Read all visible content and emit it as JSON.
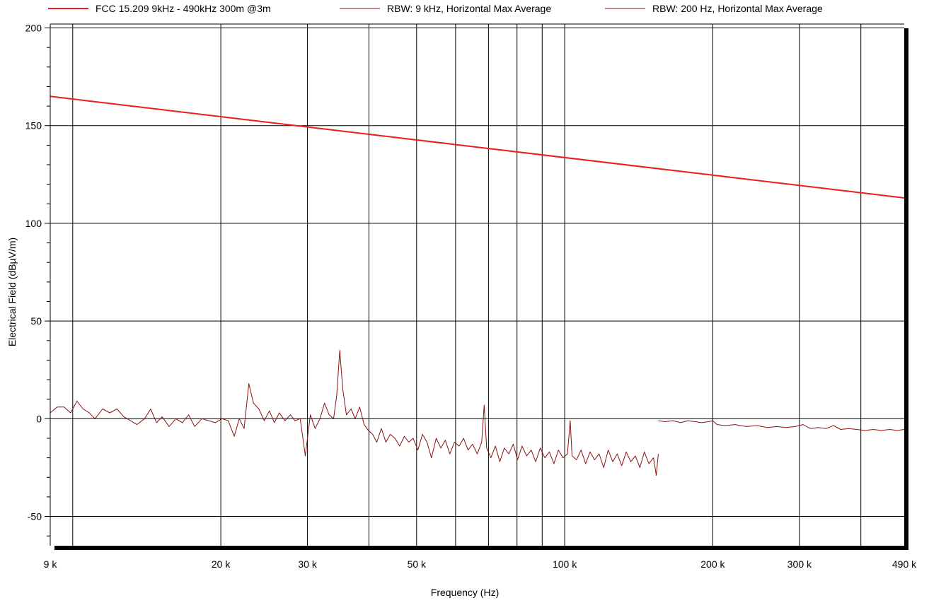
{
  "chart_data": {
    "type": "line",
    "title": "",
    "xlabel": "Frequency (Hz)",
    "ylabel": "Electrical Field (dBµV/m)",
    "x_scale": "log",
    "xlim": [
      9000,
      490000
    ],
    "ylim": [
      -65,
      202
    ],
    "grid": true,
    "legend_position": "top",
    "x_ticks": [
      {
        "value": 9000,
        "label": "9 k"
      },
      {
        "value": 20000,
        "label": "20 k"
      },
      {
        "value": 30000,
        "label": "30 k"
      },
      {
        "value": 50000,
        "label": "50 k"
      },
      {
        "value": 100000,
        "label": "100 k"
      },
      {
        "value": 200000,
        "label": "200 k"
      },
      {
        "value": 300000,
        "label": "300 k"
      },
      {
        "value": 490000,
        "label": "490 k"
      }
    ],
    "x_grid": [
      10000,
      20000,
      30000,
      40000,
      50000,
      60000,
      70000,
      80000,
      90000,
      100000,
      200000,
      300000,
      400000
    ],
    "y_ticks": [
      {
        "value": -50,
        "label": "-50"
      },
      {
        "value": 0,
        "label": "0"
      },
      {
        "value": 50,
        "label": "50"
      },
      {
        "value": 100,
        "label": "100"
      },
      {
        "value": 150,
        "label": "150"
      },
      {
        "value": 200,
        "label": "200"
      }
    ],
    "series": [
      {
        "name": "FCC 15.209 9kHz - 490kHz 300m @3m",
        "color": "#ee1c1c",
        "points": [
          [
            9000,
            165.0
          ],
          [
            490000,
            113.0
          ]
        ]
      },
      {
        "name": "RBW: 9 kHz, Horizontal Max Average",
        "color": "#8b1010",
        "points": [
          [
            9000,
            3
          ],
          [
            9300,
            6
          ],
          [
            9600,
            6
          ],
          [
            9900,
            3
          ],
          [
            10200,
            9
          ],
          [
            10500,
            5
          ],
          [
            10800,
            3
          ],
          [
            11100,
            0
          ],
          [
            11500,
            5
          ],
          [
            11900,
            3
          ],
          [
            12300,
            5
          ],
          [
            12700,
            1
          ],
          [
            13100,
            -1
          ],
          [
            13500,
            -3
          ],
          [
            14000,
            0
          ],
          [
            14400,
            5
          ],
          [
            14800,
            -2
          ],
          [
            15200,
            1
          ],
          [
            15700,
            -4
          ],
          [
            16200,
            0
          ],
          [
            16700,
            -2
          ],
          [
            17200,
            2
          ],
          [
            17700,
            -4
          ],
          [
            18300,
            0
          ],
          [
            18900,
            -1
          ],
          [
            19500,
            -2
          ],
          [
            20100,
            0
          ],
          [
            20700,
            -1
          ],
          [
            21300,
            -9
          ],
          [
            21800,
            0
          ],
          [
            22300,
            -5
          ],
          [
            22800,
            18
          ],
          [
            23300,
            8
          ],
          [
            23900,
            5
          ],
          [
            24500,
            -1
          ],
          [
            25100,
            4
          ],
          [
            25700,
            -2
          ],
          [
            26300,
            3
          ],
          [
            27000,
            -1
          ],
          [
            27700,
            2
          ],
          [
            28300,
            -1
          ],
          [
            29000,
            0
          ],
          [
            29700,
            -19
          ],
          [
            30400,
            2
          ],
          [
            31100,
            -5
          ],
          [
            31800,
            0
          ],
          [
            32500,
            8
          ],
          [
            33200,
            2
          ],
          [
            33900,
            0
          ],
          [
            34400,
            12
          ],
          [
            34900,
            35
          ],
          [
            35400,
            15
          ],
          [
            36000,
            2
          ],
          [
            36800,
            5
          ],
          [
            37500,
            0
          ],
          [
            38300,
            6
          ],
          [
            39100,
            -3
          ],
          [
            39900,
            -6
          ],
          [
            40700,
            -8
          ],
          [
            41500,
            -12
          ],
          [
            42400,
            -5
          ],
          [
            43300,
            -12
          ],
          [
            44200,
            -8
          ],
          [
            45200,
            -10
          ],
          [
            46200,
            -14
          ],
          [
            47200,
            -9
          ],
          [
            48200,
            -12
          ],
          [
            49200,
            -10
          ],
          [
            50300,
            -16
          ],
          [
            51400,
            -8
          ],
          [
            52500,
            -12
          ],
          [
            53600,
            -20
          ],
          [
            54800,
            -10
          ],
          [
            56000,
            -15
          ],
          [
            57200,
            -11
          ],
          [
            58400,
            -18
          ],
          [
            59700,
            -12
          ],
          [
            61000,
            -14
          ],
          [
            62300,
            -10
          ],
          [
            63600,
            -16
          ],
          [
            65000,
            -13
          ],
          [
            66400,
            -18
          ],
          [
            67800,
            -12
          ],
          [
            68600,
            7
          ],
          [
            69400,
            -15
          ],
          [
            70800,
            -20
          ],
          [
            72300,
            -14
          ],
          [
            73800,
            -22
          ],
          [
            75400,
            -15
          ],
          [
            77000,
            -18
          ],
          [
            78600,
            -13
          ],
          [
            80200,
            -21
          ],
          [
            81900,
            -14
          ],
          [
            83700,
            -19
          ],
          [
            85500,
            -16
          ],
          [
            87300,
            -22
          ],
          [
            89200,
            -15
          ],
          [
            91100,
            -20
          ],
          [
            93100,
            -17
          ],
          [
            95100,
            -23
          ],
          [
            97100,
            -16
          ],
          [
            99200,
            -20
          ],
          [
            101300,
            -18
          ],
          [
            102600,
            -1
          ],
          [
            103500,
            -19
          ],
          [
            105700,
            -21
          ],
          [
            108000,
            -16
          ],
          [
            110300,
            -23
          ],
          [
            112600,
            -17
          ],
          [
            115000,
            -21
          ],
          [
            117500,
            -18
          ],
          [
            120000,
            -25
          ],
          [
            122600,
            -16
          ],
          [
            125200,
            -22
          ],
          [
            127900,
            -18
          ],
          [
            130600,
            -24
          ],
          [
            133400,
            -17
          ],
          [
            136300,
            -22
          ],
          [
            139200,
            -19
          ],
          [
            142200,
            -25
          ],
          [
            145200,
            -17
          ],
          [
            148300,
            -23
          ],
          [
            151500,
            -20
          ],
          [
            153500,
            -29
          ],
          [
            155000,
            -18
          ]
        ]
      },
      {
        "name": "RBW: 200 Hz, Horizontal Max Average",
        "color": "#8b1010",
        "points": [
          [
            155000,
            -1
          ],
          [
            160000,
            -1.5
          ],
          [
            166000,
            -1
          ],
          [
            172000,
            -2
          ],
          [
            178000,
            -1
          ],
          [
            184000,
            -1.5
          ],
          [
            190000,
            -2
          ],
          [
            196000,
            -1.5
          ],
          [
            200000,
            -1
          ],
          [
            204000,
            -3
          ],
          [
            212000,
            -3.5
          ],
          [
            222000,
            -3
          ],
          [
            234000,
            -4
          ],
          [
            246000,
            -3.5
          ],
          [
            258000,
            -4.5
          ],
          [
            270000,
            -4
          ],
          [
            282000,
            -4.5
          ],
          [
            294000,
            -4
          ],
          [
            305000,
            -3
          ],
          [
            316000,
            -5
          ],
          [
            328000,
            -4.5
          ],
          [
            340000,
            -5
          ],
          [
            352000,
            -3.5
          ],
          [
            364000,
            -5.5
          ],
          [
            378000,
            -5
          ],
          [
            392000,
            -5.5
          ],
          [
            408000,
            -6
          ],
          [
            424000,
            -5.5
          ],
          [
            440000,
            -6
          ],
          [
            458000,
            -5.5
          ],
          [
            474000,
            -6
          ],
          [
            490000,
            -5.5
          ]
        ]
      }
    ]
  }
}
